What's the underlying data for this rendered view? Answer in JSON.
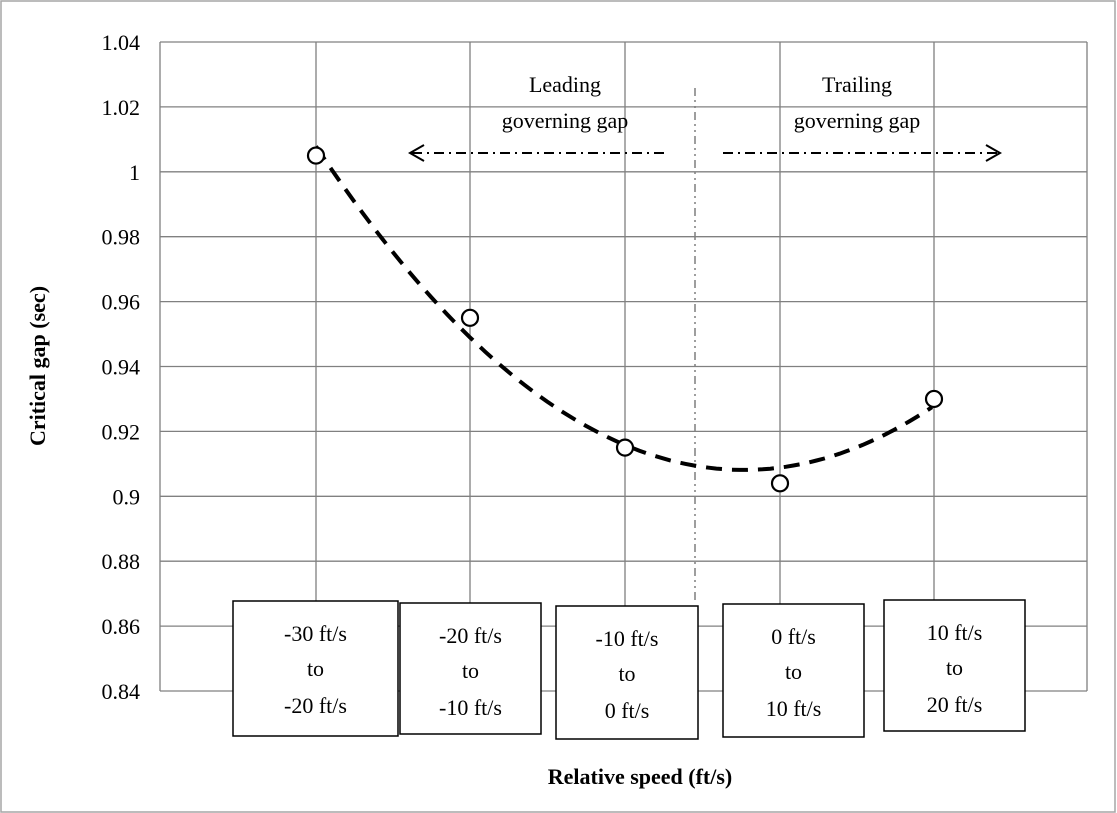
{
  "chart_data": {
    "type": "scatter",
    "ylabel": "Critical gap (sec)",
    "xlabel": "Relative speed (ft/s)",
    "ylim": [
      0.84,
      1.04
    ],
    "ytick_labels": [
      "1.04",
      "1.02",
      "1",
      "0.98",
      "0.96",
      "0.94",
      "0.92",
      "0.9",
      "0.88",
      "0.86",
      "0.84"
    ],
    "ytick_values": [
      1.04,
      1.02,
      1.0,
      0.98,
      0.96,
      0.94,
      0.92,
      0.9,
      0.88,
      0.86,
      0.84
    ],
    "grid": true,
    "categories": [
      [
        "-30 ft/s",
        "to",
        "-20 ft/s"
      ],
      [
        "-20 ft/s",
        "to",
        "-10 ft/s"
      ],
      [
        "-10 ft/s",
        "to",
        "0 ft/s"
      ],
      [
        "0 ft/s",
        "to",
        "10 ft/s"
      ],
      [
        "10 ft/s",
        "to",
        "20 ft/s"
      ]
    ],
    "series": [
      {
        "values": [
          1.005,
          0.955,
          0.915,
          0.904,
          0.93
        ],
        "marker": "open-circle",
        "trendline": "dashed-polynomial"
      }
    ],
    "annotations": {
      "leading": [
        "Leading",
        "governing gap"
      ],
      "trailing": [
        "Trailing",
        "governing gap"
      ]
    },
    "colors": {
      "grid": "#808080",
      "marks": "#000000"
    }
  }
}
